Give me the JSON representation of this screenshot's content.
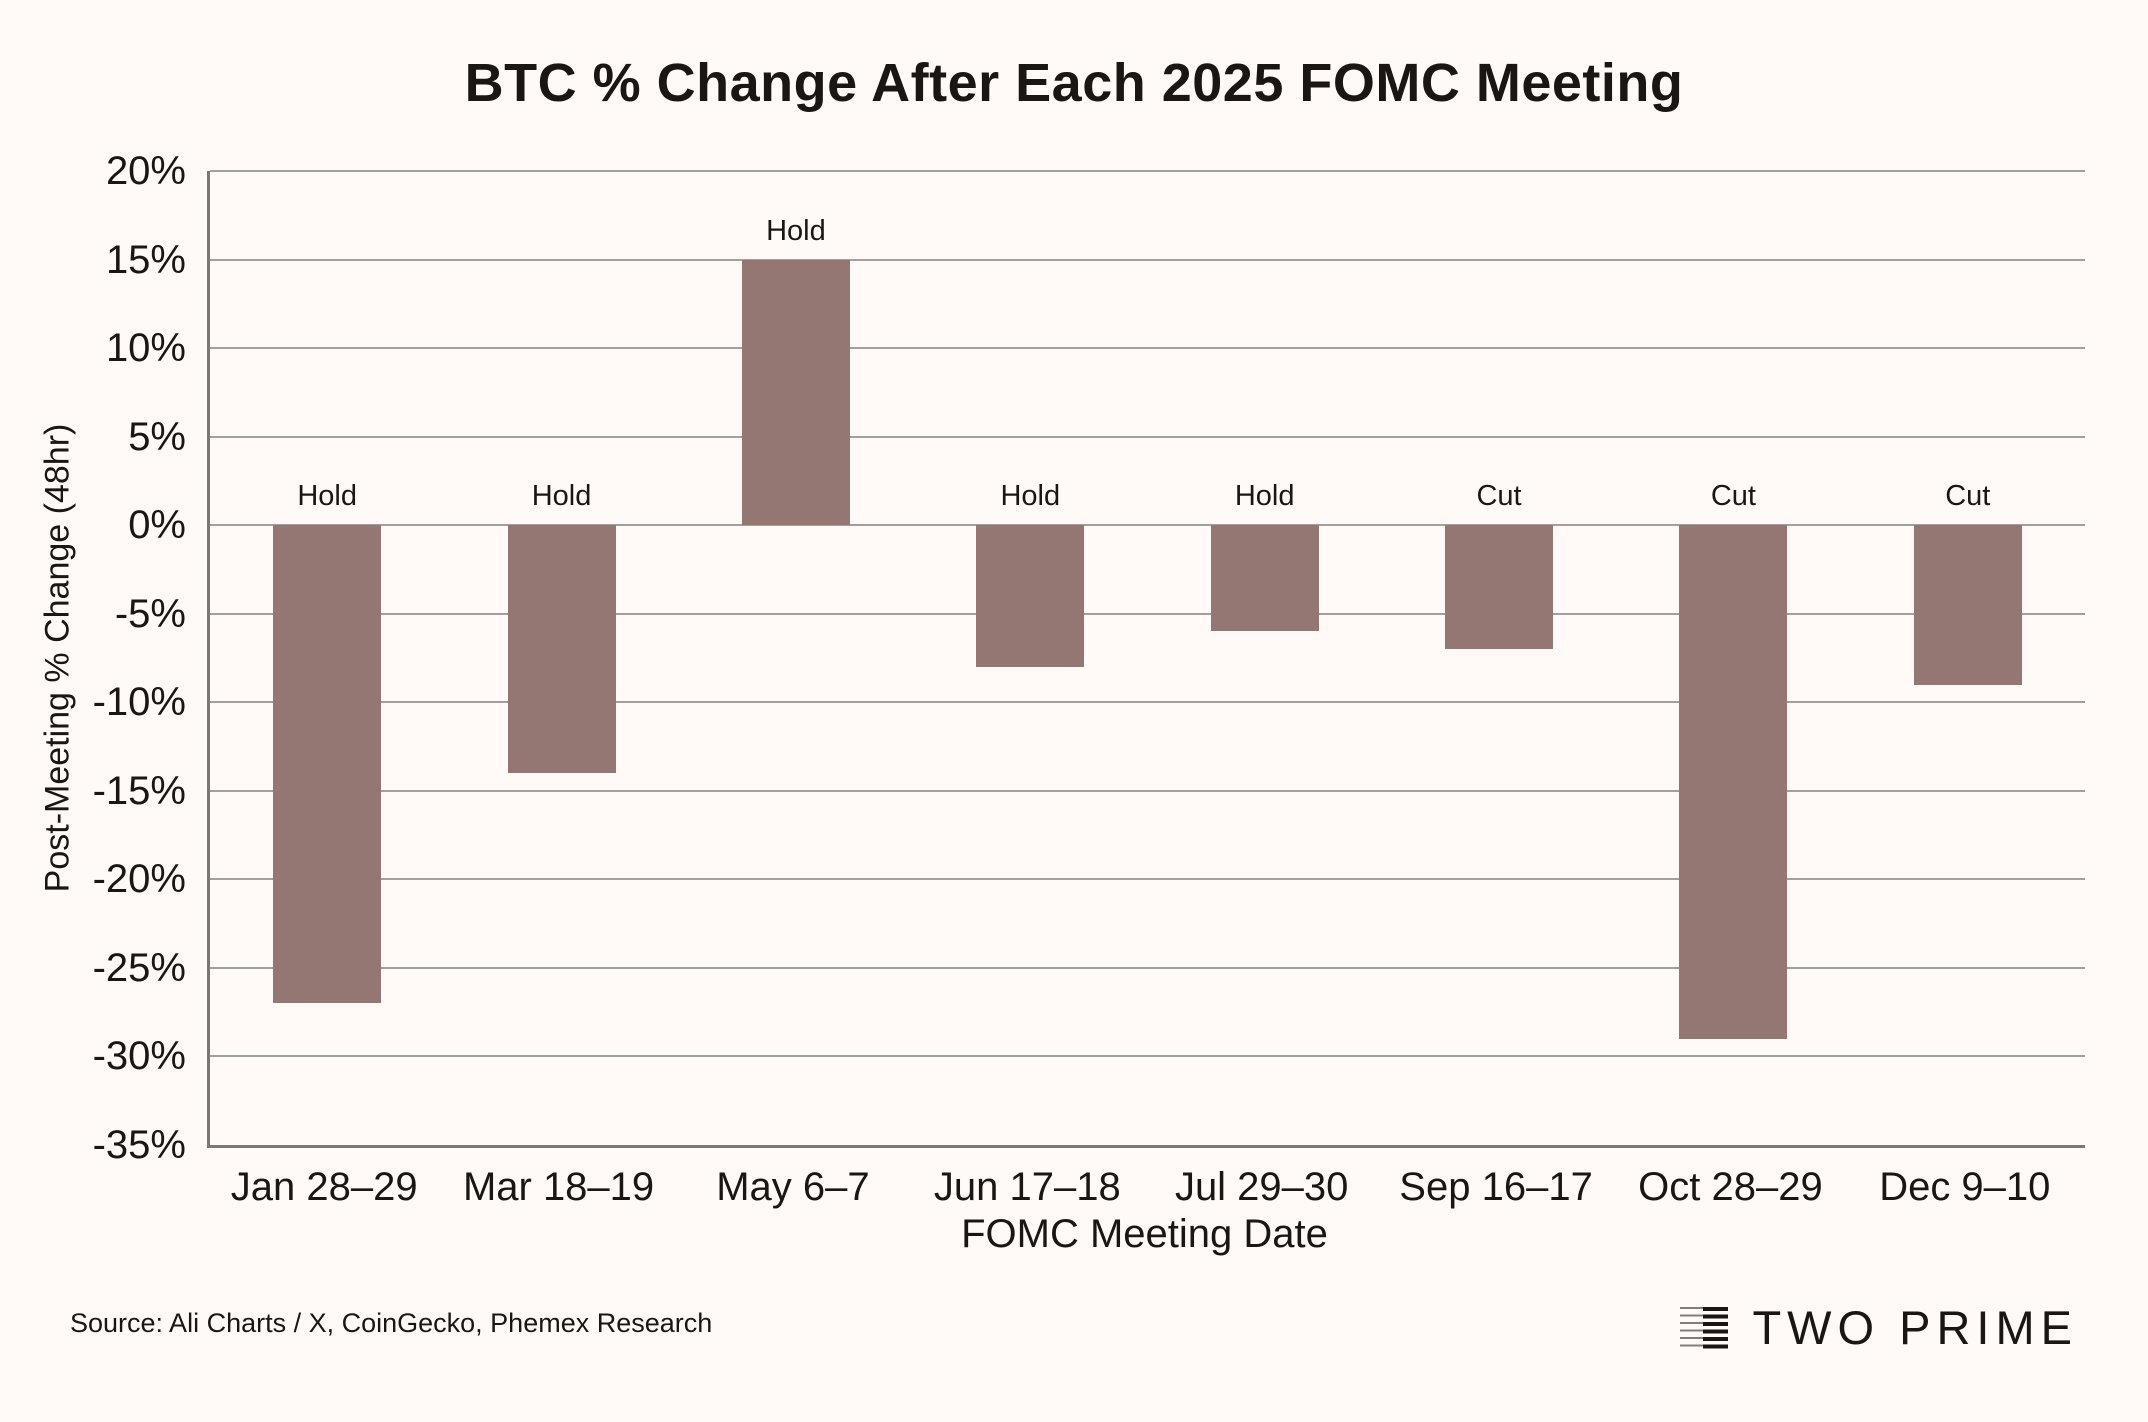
{
  "title": "BTC % Change After Each 2025 FOMC Meeting",
  "chart_data": {
    "type": "bar",
    "categories": [
      "Jan 28–29",
      "Mar 18–19",
      "May 6–7",
      "Jun 17–18",
      "Jul 29–30",
      "Sep 16–17",
      "Oct 28–29",
      "Dec 9–10"
    ],
    "values": [
      -27,
      -14,
      15,
      -8,
      -6,
      -7,
      -29,
      -9
    ],
    "bar_labels": [
      "Hold",
      "Hold",
      "Hold",
      "Hold",
      "Hold",
      "Cut",
      "Cut",
      "Cut"
    ],
    "title": "BTC % Change After Each 2025 FOMC Meeting",
    "xlabel": "FOMC Meeting Date",
    "ylabel": "Post-Meeting % Change (48hr)",
    "ylim": [
      -35,
      20
    ],
    "ytick_values": [
      20,
      15,
      10,
      5,
      0,
      -5,
      -10,
      -15,
      -20,
      -25,
      -30,
      -35
    ],
    "ytick_labels": [
      "20%",
      "15%",
      "10%",
      "5%",
      "0%",
      "-5%",
      "-10%",
      "-15%",
      "-20%",
      "-25%",
      "-30%",
      "-35%"
    ],
    "grid": true,
    "legend": false
  },
  "colors": {
    "background": "#fffaf7",
    "bar": "#947772",
    "gridline": "#a59e9b",
    "axis": "#7c7775",
    "text": "#1b1614"
  },
  "footer": {
    "source": "Source: Ali Charts / X, CoinGecko, Phemex Research",
    "brand": "TWO PRIME"
  }
}
